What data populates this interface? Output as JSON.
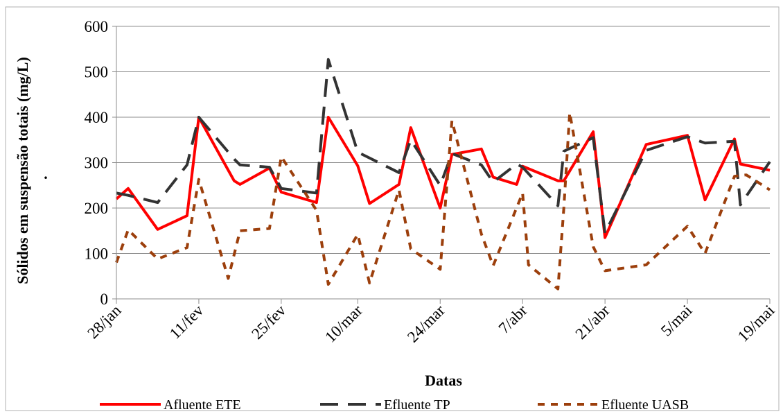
{
  "chart_data": {
    "type": "line",
    "xlabel": "Datas",
    "ylabel": "Sólidos em suspensão totais (mg/L)",
    "ylabel_dot": ".",
    "ylim": [
      0,
      600
    ],
    "yticks": [
      0,
      100,
      200,
      300,
      400,
      500,
      600
    ],
    "xlim": [
      "2009-01-28",
      "2009-05-19"
    ],
    "xticks": [
      {
        "date": "2009-01-28",
        "label": "28/jan"
      },
      {
        "date": "2009-02-11",
        "label": "11/fev"
      },
      {
        "date": "2009-02-25",
        "label": "25/fev"
      },
      {
        "date": "2009-03-10",
        "label": "10/mar"
      },
      {
        "date": "2009-03-24",
        "label": "24/mar"
      },
      {
        "date": "2009-04-07",
        "label": "7/abr"
      },
      {
        "date": "2009-04-21",
        "label": "21/abr"
      },
      {
        "date": "2009-05-05",
        "label": "5/mai"
      },
      {
        "date": "2009-05-19",
        "label": "19/mai"
      }
    ],
    "grid": "horizontal",
    "legend_position": "bottom",
    "series": [
      {
        "name": "Afluente ETE",
        "color": "#ff0000",
        "style": "solid",
        "points": [
          [
            "2009-01-28",
            220
          ],
          [
            "2009-01-30",
            243
          ],
          [
            "2009-02-04",
            153
          ],
          [
            "2009-02-09",
            183
          ],
          [
            "2009-02-11",
            400
          ],
          [
            "2009-02-17",
            260
          ],
          [
            "2009-02-18",
            252
          ],
          [
            "2009-02-23",
            288
          ],
          [
            "2009-02-25",
            235
          ],
          [
            "2009-03-03",
            212
          ],
          [
            "2009-03-05",
            400
          ],
          [
            "2009-03-10",
            293
          ],
          [
            "2009-03-12",
            210
          ],
          [
            "2009-03-17",
            252
          ],
          [
            "2009-03-19",
            377
          ],
          [
            "2009-03-24",
            200
          ],
          [
            "2009-03-26",
            318
          ],
          [
            "2009-03-31",
            330
          ],
          [
            "2009-04-02",
            268
          ],
          [
            "2009-04-06",
            252
          ],
          [
            "2009-04-07",
            292
          ],
          [
            "2009-04-13",
            260
          ],
          [
            "2009-04-14",
            260
          ],
          [
            "2009-04-19",
            368
          ],
          [
            "2009-04-21",
            135
          ],
          [
            "2009-04-28",
            340
          ],
          [
            "2009-05-05",
            360
          ],
          [
            "2009-05-08",
            218
          ],
          [
            "2009-05-13",
            352
          ],
          [
            "2009-05-14",
            297
          ],
          [
            "2009-05-19",
            283
          ]
        ]
      },
      {
        "name": "Efluente TP",
        "color": "#333333",
        "style": "dashed",
        "points": [
          [
            "2009-01-28",
            233
          ],
          [
            "2009-01-30",
            228
          ],
          [
            "2009-02-04",
            212
          ],
          [
            "2009-02-09",
            295
          ],
          [
            "2009-02-11",
            400
          ],
          [
            "2009-02-17",
            308
          ],
          [
            "2009-02-18",
            295
          ],
          [
            "2009-02-23",
            290
          ],
          [
            "2009-02-25",
            243
          ],
          [
            "2009-03-03",
            233
          ],
          [
            "2009-03-05",
            527
          ],
          [
            "2009-03-10",
            323
          ],
          [
            "2009-03-17",
            278
          ],
          [
            "2009-03-19",
            350
          ],
          [
            "2009-03-24",
            250
          ],
          [
            "2009-03-26",
            320
          ],
          [
            "2009-03-31",
            295
          ],
          [
            "2009-04-02",
            257
          ],
          [
            "2009-04-06",
            297
          ],
          [
            "2009-04-07",
            290
          ],
          [
            "2009-04-13",
            205
          ],
          [
            "2009-04-14",
            325
          ],
          [
            "2009-04-19",
            355
          ],
          [
            "2009-04-21",
            145
          ],
          [
            "2009-04-28",
            327
          ],
          [
            "2009-05-05",
            357
          ],
          [
            "2009-05-08",
            343
          ],
          [
            "2009-05-13",
            347
          ],
          [
            "2009-05-14",
            207
          ],
          [
            "2009-05-19",
            302
          ]
        ]
      },
      {
        "name": "Efluente UASB",
        "color": "#9c3f0c",
        "style": "dotted",
        "points": [
          [
            "2009-01-28",
            80
          ],
          [
            "2009-01-30",
            152
          ],
          [
            "2009-02-04",
            88
          ],
          [
            "2009-02-09",
            113
          ],
          [
            "2009-02-11",
            263
          ],
          [
            "2009-02-16",
            45
          ],
          [
            "2009-02-18",
            150
          ],
          [
            "2009-02-23",
            155
          ],
          [
            "2009-02-25",
            313
          ],
          [
            "2009-03-03",
            195
          ],
          [
            "2009-03-05",
            32
          ],
          [
            "2009-03-10",
            142
          ],
          [
            "2009-03-12",
            35
          ],
          [
            "2009-03-17",
            240
          ],
          [
            "2009-03-19",
            110
          ],
          [
            "2009-03-24",
            65
          ],
          [
            "2009-03-26",
            392
          ],
          [
            "2009-03-31",
            143
          ],
          [
            "2009-04-02",
            73
          ],
          [
            "2009-04-07",
            233
          ],
          [
            "2009-04-08",
            75
          ],
          [
            "2009-04-13",
            22
          ],
          [
            "2009-04-14",
            200
          ],
          [
            "2009-04-15",
            410
          ],
          [
            "2009-04-19",
            115
          ],
          [
            "2009-04-21",
            62
          ],
          [
            "2009-04-28",
            75
          ],
          [
            "2009-05-05",
            160
          ],
          [
            "2009-05-08",
            100
          ],
          [
            "2009-05-13",
            270
          ],
          [
            "2009-05-15",
            273
          ],
          [
            "2009-05-19",
            240
          ]
        ]
      }
    ]
  }
}
